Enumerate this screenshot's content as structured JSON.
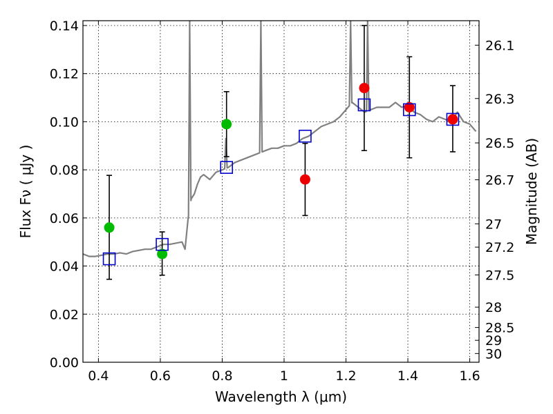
{
  "chart_data": {
    "type": "scatter",
    "xlabel": "Wavelength  λ (μm)",
    "ylabel": "Flux  Fν  ( μJy )",
    "y2label": "Magnitude (AB)",
    "xlim": [
      0.35,
      1.63
    ],
    "ylim": [
      0.0,
      0.142
    ],
    "grid": true,
    "x_ticks": [
      {
        "v": 0.4,
        "label": "0.4"
      },
      {
        "v": 0.6,
        "label": "0.6"
      },
      {
        "v": 0.8,
        "label": "0.8"
      },
      {
        "v": 1.0,
        "label": "1"
      },
      {
        "v": 1.2,
        "label": "1.2"
      },
      {
        "v": 1.4,
        "label": "1.4"
      },
      {
        "v": 1.6,
        "label": "1.6"
      }
    ],
    "y_ticks": [
      {
        "v": 0.0,
        "label": "0.00"
      },
      {
        "v": 0.02,
        "label": "0.02"
      },
      {
        "v": 0.04,
        "label": "0.04"
      },
      {
        "v": 0.06,
        "label": "0.06"
      },
      {
        "v": 0.08,
        "label": "0.08"
      },
      {
        "v": 0.1,
        "label": "0.10"
      },
      {
        "v": 0.12,
        "label": "0.12"
      },
      {
        "v": 0.14,
        "label": "0.14"
      }
    ],
    "mag_ticks": [
      {
        "mag": 26.1,
        "label": "26.1"
      },
      {
        "mag": 26.3,
        "label": "26.3"
      },
      {
        "mag": 26.5,
        "label": "26.5"
      },
      {
        "mag": 26.7,
        "label": "26.7"
      },
      {
        "mag": 27.0,
        "label": "27"
      },
      {
        "mag": 27.2,
        "label": "27.2"
      },
      {
        "mag": 27.5,
        "label": "27.5"
      },
      {
        "mag": 28.0,
        "label": "28"
      },
      {
        "mag": 28.5,
        "label": "28.5"
      },
      {
        "mag": 29.0,
        "label": "29"
      },
      {
        "mag": 30.0,
        "label": "30"
      }
    ],
    "sed_model": {
      "color": "#808080",
      "points": [
        [
          0.35,
          0.045
        ],
        [
          0.37,
          0.044
        ],
        [
          0.39,
          0.044
        ],
        [
          0.41,
          0.0445
        ],
        [
          0.43,
          0.045
        ],
        [
          0.45,
          0.045
        ],
        [
          0.47,
          0.0455
        ],
        [
          0.49,
          0.045
        ],
        [
          0.51,
          0.046
        ],
        [
          0.53,
          0.0465
        ],
        [
          0.55,
          0.047
        ],
        [
          0.57,
          0.047
        ],
        [
          0.59,
          0.048
        ],
        [
          0.61,
          0.049
        ],
        [
          0.63,
          0.049
        ],
        [
          0.65,
          0.0495
        ],
        [
          0.67,
          0.05
        ],
        [
          0.68,
          0.047
        ],
        [
          0.69,
          0.06
        ],
        [
          0.7,
          0.068
        ],
        [
          0.71,
          0.07
        ],
        [
          0.72,
          0.074
        ],
        [
          0.73,
          0.077
        ],
        [
          0.74,
          0.078
        ],
        [
          0.76,
          0.076
        ],
        [
          0.78,
          0.079
        ],
        [
          0.8,
          0.08
        ],
        [
          0.82,
          0.081
        ],
        [
          0.84,
          0.083
        ],
        [
          0.86,
          0.084
        ],
        [
          0.88,
          0.085
        ],
        [
          0.9,
          0.086
        ],
        [
          0.92,
          0.087
        ],
        [
          0.94,
          0.088
        ],
        [
          0.96,
          0.089
        ],
        [
          0.98,
          0.089
        ],
        [
          1.0,
          0.09
        ],
        [
          1.02,
          0.09
        ],
        [
          1.04,
          0.091
        ],
        [
          1.06,
          0.093
        ],
        [
          1.08,
          0.094
        ],
        [
          1.1,
          0.096
        ],
        [
          1.12,
          0.098
        ],
        [
          1.14,
          0.099
        ],
        [
          1.16,
          0.1
        ],
        [
          1.18,
          0.102
        ],
        [
          1.2,
          0.105
        ],
        [
          1.22,
          0.108
        ],
        [
          1.24,
          0.106
        ],
        [
          1.26,
          0.104
        ],
        [
          1.28,
          0.105
        ],
        [
          1.3,
          0.106
        ],
        [
          1.32,
          0.106
        ],
        [
          1.34,
          0.106
        ],
        [
          1.36,
          0.108
        ],
        [
          1.38,
          0.106
        ],
        [
          1.4,
          0.107
        ],
        [
          1.42,
          0.104
        ],
        [
          1.44,
          0.103
        ],
        [
          1.46,
          0.101
        ],
        [
          1.48,
          0.1
        ],
        [
          1.5,
          0.102
        ],
        [
          1.52,
          0.101
        ],
        [
          1.54,
          0.1
        ],
        [
          1.56,
          0.104
        ],
        [
          1.58,
          0.1
        ],
        [
          1.6,
          0.099
        ],
        [
          1.62,
          0.096
        ]
      ],
      "spikes": [
        {
          "x": 0.695,
          "y": 0.142
        },
        {
          "x": 0.812,
          "y": 0.093
        },
        {
          "x": 0.925,
          "y": 0.142
        },
        {
          "x": 1.215,
          "y": 0.142
        },
        {
          "x": 1.27,
          "y": 0.142
        }
      ]
    },
    "model_fluxes": {
      "marker": "open-square",
      "color": "#0000cc",
      "points": [
        {
          "x": 0.435,
          "y": 0.043
        },
        {
          "x": 0.606,
          "y": 0.049
        },
        {
          "x": 0.814,
          "y": 0.081
        },
        {
          "x": 1.068,
          "y": 0.094
        },
        {
          "x": 1.259,
          "y": 0.107
        },
        {
          "x": 1.405,
          "y": 0.105
        },
        {
          "x": 1.545,
          "y": 0.101
        }
      ]
    },
    "observed_optical": {
      "marker": "filled-circle",
      "color": "#00bb00",
      "points": [
        {
          "x": 0.435,
          "y": 0.056,
          "err_lo": 0.0345,
          "err_hi": 0.0777
        },
        {
          "x": 0.606,
          "y": 0.045,
          "err_lo": 0.0362,
          "err_hi": 0.0542
        },
        {
          "x": 0.814,
          "y": 0.099,
          "err_lo": 0.0855,
          "err_hi": 0.1125
        }
      ]
    },
    "observed_nir": {
      "marker": "filled-circle",
      "color": "#ee0000",
      "points": [
        {
          "x": 1.068,
          "y": 0.076,
          "err_lo": 0.061,
          "err_hi": 0.091
        },
        {
          "x": 1.259,
          "y": 0.114,
          "err_lo": 0.088,
          "err_hi": 0.14
        },
        {
          "x": 1.405,
          "y": 0.106,
          "err_lo": 0.085,
          "err_hi": 0.127
        },
        {
          "x": 1.545,
          "y": 0.101,
          "err_lo": 0.0875,
          "err_hi": 0.115
        }
      ]
    }
  }
}
